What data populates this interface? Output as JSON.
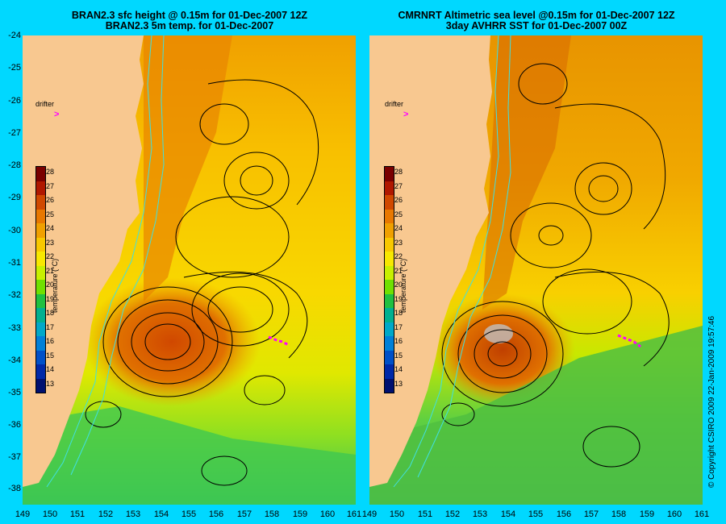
{
  "colors": {
    "background": "#00d8ff",
    "land": "#f8c890",
    "contour": "#000000",
    "bathymetry": "#40e0e0",
    "drifter": "#ff00ff"
  },
  "left_panel": {
    "title_line1": "BRAN2.3 sfc height @ 0.15m for 01-Dec-2007 12Z",
    "title_line2": "BRAN2.3 5m temp. for 01-Dec-2007",
    "drifter_label": "drifter"
  },
  "right_panel": {
    "title_line1": "CMRNRT Altimetric sea level  @0.15m  for 01-Dec-2007 12Z",
    "title_line2": "3day AVHRR SST for 01-Dec-2007 00Z",
    "drifter_label": "drifter"
  },
  "axes": {
    "latitudes": [
      "-24",
      "-25",
      "-26",
      "-27",
      "-28",
      "-29",
      "-30",
      "-31",
      "-32",
      "-33",
      "-34",
      "-35",
      "-36",
      "-37",
      "-38"
    ],
    "left_longitudes": [
      "149",
      "150",
      "151",
      "152",
      "153",
      "154",
      "155",
      "156",
      "157",
      "158",
      "159",
      "160",
      "161"
    ],
    "right_longitudes": [
      "149",
      "150",
      "151",
      "152",
      "153",
      "154",
      "155",
      "156",
      "157",
      "158",
      "159",
      "160",
      "161"
    ]
  },
  "colorbar": {
    "title": "temperature (°C)",
    "ticks": [
      "28",
      "27",
      "26",
      "25",
      "24",
      "23",
      "22",
      "21",
      "20",
      "19",
      "18",
      "17",
      "16",
      "15",
      "14",
      "13"
    ],
    "colors": [
      "#7a0000",
      "#b01800",
      "#d04800",
      "#e87800",
      "#f0a000",
      "#f8c800",
      "#f8e800",
      "#c8f000",
      "#70e000",
      "#20c040",
      "#00b090",
      "#00a8c8",
      "#0080d8",
      "#0050c8",
      "#0028a8",
      "#001070"
    ]
  },
  "copyright": "© Copyright CSIRO 2009  22-Jan-2009 19:57:46"
}
